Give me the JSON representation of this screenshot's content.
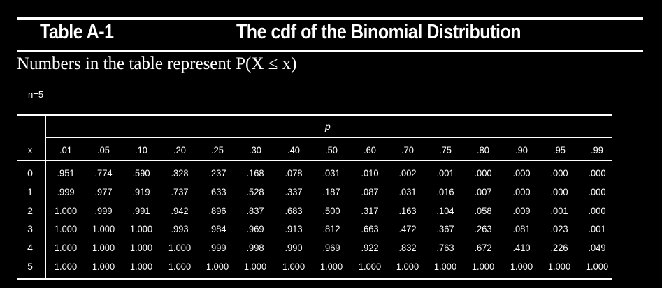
{
  "header": {
    "table_label": "Table A-1",
    "title": "The cdf of the Binomial Distribution"
  },
  "subtitle": "Numbers in the table represent P(X ≤ x)",
  "n_label": "n=5",
  "p_label": "p",
  "x_label": "x",
  "columns": [
    ".01",
    ".05",
    ".10",
    ".20",
    ".25",
    ".30",
    ".40",
    ".50",
    ".60",
    ".70",
    ".75",
    ".80",
    ".90",
    ".95",
    ".99"
  ],
  "rows": [
    {
      "x": "0",
      "values": [
        ".951",
        ".774",
        ".590",
        ".328",
        ".237",
        ".168",
        ".078",
        ".031",
        ".010",
        ".002",
        ".001",
        ".000",
        ".000",
        ".000",
        ".000"
      ]
    },
    {
      "x": "1",
      "values": [
        ".999",
        ".977",
        ".919",
        ".737",
        ".633",
        ".528",
        ".337",
        ".187",
        ".087",
        ".031",
        ".016",
        ".007",
        ".000",
        ".000",
        ".000"
      ]
    },
    {
      "x": "2",
      "values": [
        "1.000",
        ".999",
        ".991",
        ".942",
        ".896",
        ".837",
        ".683",
        ".500",
        ".317",
        ".163",
        ".104",
        ".058",
        ".009",
        ".001",
        ".000"
      ]
    },
    {
      "x": "3",
      "values": [
        "1.000",
        "1.000",
        "1.000",
        ".993",
        ".984",
        ".969",
        ".913",
        ".812",
        ".663",
        ".472",
        ".367",
        ".263",
        ".081",
        ".023",
        ".001"
      ]
    },
    {
      "x": "4",
      "values": [
        "1.000",
        "1.000",
        "1.000",
        "1.000",
        ".999",
        ".998",
        ".990",
        ".969",
        ".922",
        ".832",
        ".763",
        ".672",
        ".410",
        ".226",
        ".049"
      ]
    },
    {
      "x": "5",
      "values": [
        "1.000",
        "1.000",
        "1.000",
        "1.000",
        "1.000",
        "1.000",
        "1.000",
        "1.000",
        "1.000",
        "1.000",
        "1.000",
        "1.000",
        "1.000",
        "1.000",
        "1.000"
      ]
    }
  ]
}
